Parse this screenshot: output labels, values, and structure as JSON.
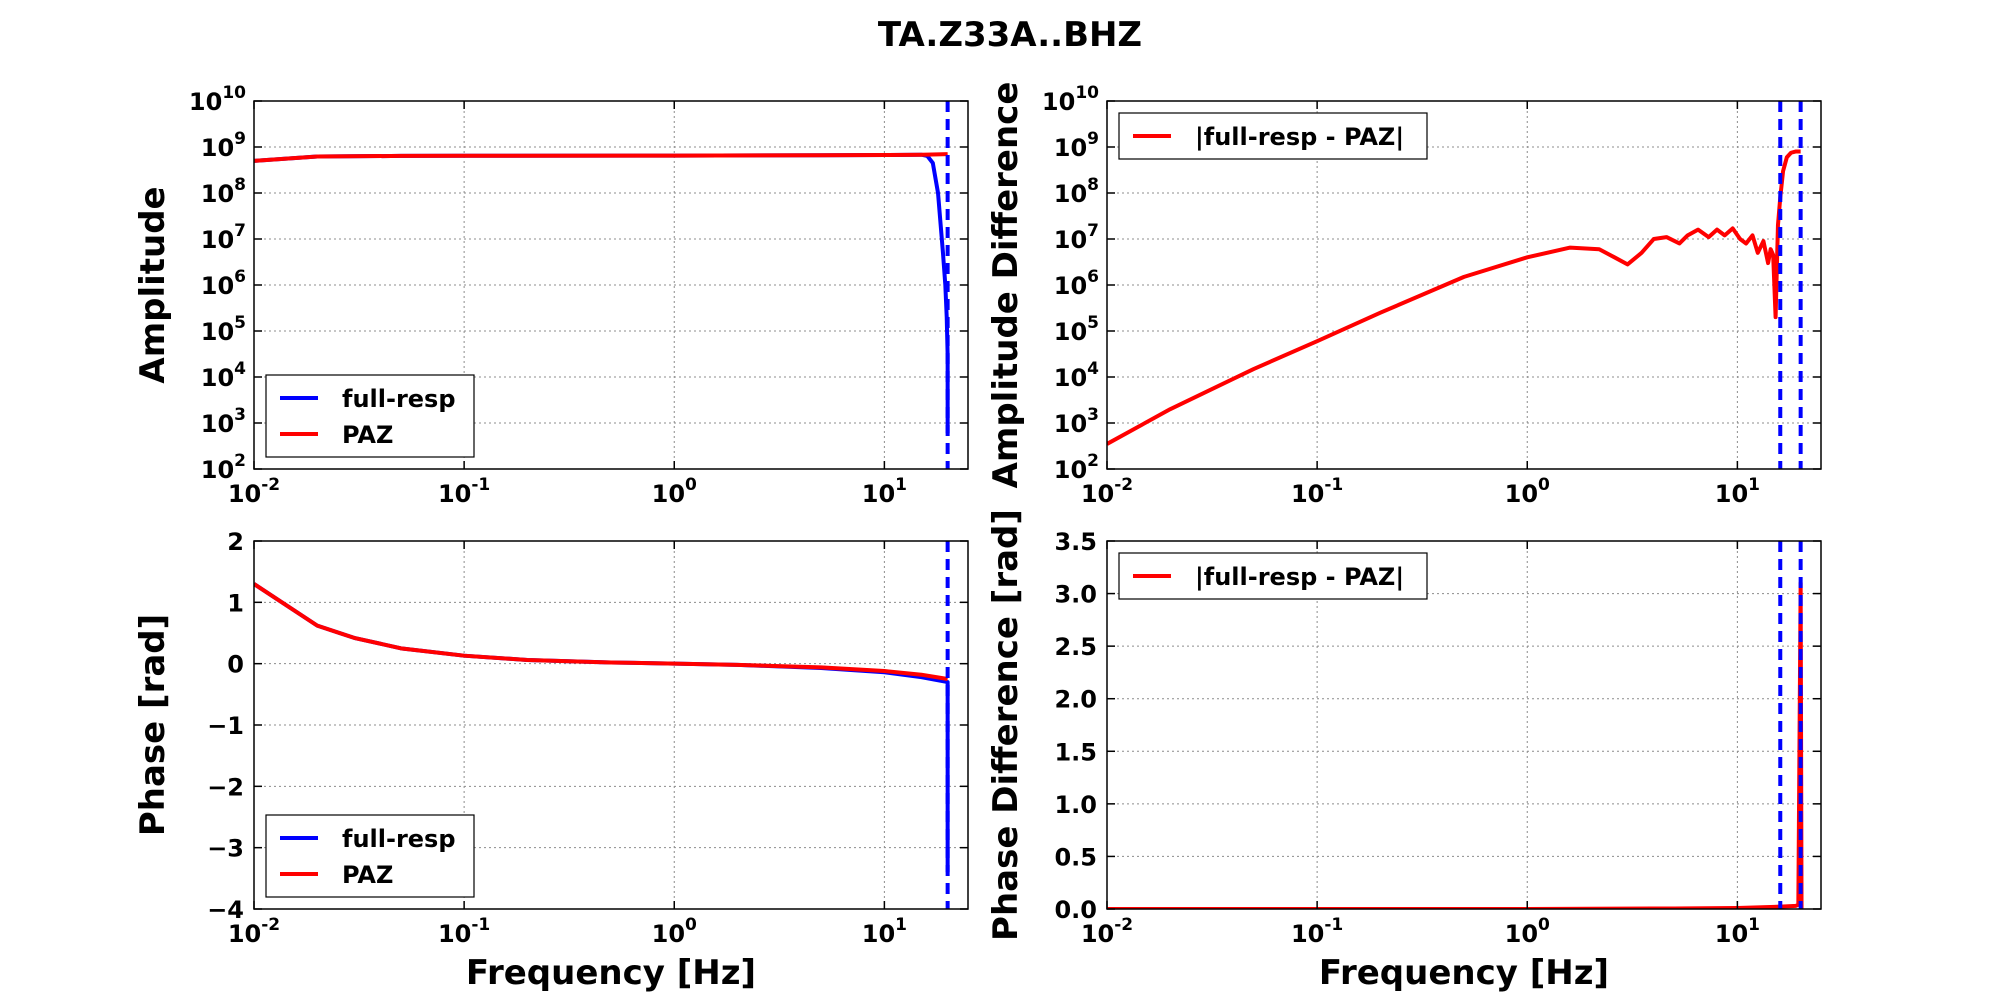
{
  "figure": {
    "title": "TA.Z33A..BHZ"
  },
  "colors": {
    "full_resp": "#0000ff",
    "paz": "#ff0000",
    "background": "#ffffff"
  },
  "chart_data": [
    {
      "id": "amplitude",
      "type": "line",
      "xscale": "log",
      "yscale": "log",
      "xlim": [
        0.01,
        25
      ],
      "ylim": [
        100,
        10000000000
      ],
      "xlabel": "",
      "ylabel": "Amplitude",
      "xticks": [
        0.01,
        0.1,
        1,
        10
      ],
      "xtick_labels": [
        {
          "base": "10",
          "exp": "-2"
        },
        {
          "base": "10",
          "exp": "-1"
        },
        {
          "base": "10",
          "exp": "0"
        },
        {
          "base": "10",
          "exp": "1"
        }
      ],
      "yticks": [
        100,
        1000,
        10000,
        100000,
        1000000,
        10000000,
        100000000,
        1000000000,
        10000000000
      ],
      "ytick_labels": [
        {
          "base": "10",
          "exp": "2"
        },
        {
          "base": "10",
          "exp": "3"
        },
        {
          "base": "10",
          "exp": "4"
        },
        {
          "base": "10",
          "exp": "5"
        },
        {
          "base": "10",
          "exp": "6"
        },
        {
          "base": "10",
          "exp": "7"
        },
        {
          "base": "10",
          "exp": "8"
        },
        {
          "base": "10",
          "exp": "9"
        },
        {
          "base": "10",
          "exp": "10"
        }
      ],
      "grid": true,
      "legend": {
        "position": "lower-left",
        "entries": [
          "full-resp",
          "PAZ"
        ]
      },
      "vlines": [
        20
      ],
      "series": [
        {
          "name": "full-resp",
          "color": "#0000ff",
          "x": [
            0.01,
            0.02,
            0.05,
            0.1,
            1,
            5,
            10,
            15,
            16,
            17,
            18,
            19,
            19.5,
            19.8,
            20,
            20,
            20
          ],
          "y": [
            500000000,
            620000000,
            640000000,
            645000000,
            650000000,
            660000000,
            670000000,
            680000000,
            640000000,
            450000000,
            100000000,
            5000000,
            1000000,
            200000,
            30000,
            3000,
            600
          ]
        },
        {
          "name": "PAZ",
          "color": "#ff0000",
          "x": [
            0.01,
            0.02,
            0.05,
            0.1,
            1,
            5,
            10,
            15,
            20
          ],
          "y": [
            500000000,
            620000000,
            640000000,
            645000000,
            650000000,
            660000000,
            670000000,
            680000000,
            700000000
          ]
        }
      ]
    },
    {
      "id": "amplitude-difference",
      "type": "line",
      "xscale": "log",
      "yscale": "log",
      "xlim": [
        0.01,
        25
      ],
      "ylim": [
        100,
        10000000000
      ],
      "xlabel": "",
      "ylabel": "Amplitude Difference",
      "xticks": [
        0.01,
        0.1,
        1,
        10
      ],
      "xtick_labels": [
        {
          "base": "10",
          "exp": "-2"
        },
        {
          "base": "10",
          "exp": "-1"
        },
        {
          "base": "10",
          "exp": "0"
        },
        {
          "base": "10",
          "exp": "1"
        }
      ],
      "yticks": [
        100,
        1000,
        10000,
        100000,
        1000000,
        10000000,
        100000000,
        1000000000,
        10000000000
      ],
      "ytick_labels": [
        {
          "base": "10",
          "exp": "2"
        },
        {
          "base": "10",
          "exp": "3"
        },
        {
          "base": "10",
          "exp": "4"
        },
        {
          "base": "10",
          "exp": "5"
        },
        {
          "base": "10",
          "exp": "6"
        },
        {
          "base": "10",
          "exp": "7"
        },
        {
          "base": "10",
          "exp": "8"
        },
        {
          "base": "10",
          "exp": "9"
        },
        {
          "base": "10",
          "exp": "10"
        }
      ],
      "grid": true,
      "legend": {
        "position": "upper-left",
        "entries": [
          "|full-resp - PAZ|"
        ]
      },
      "vlines": [
        16,
        20
      ],
      "series": [
        {
          "name": "|full-resp - PAZ|",
          "color": "#ff0000",
          "x": [
            0.01,
            0.02,
            0.05,
            0.1,
            0.2,
            0.5,
            1,
            1.6,
            2.2,
            2.6,
            3,
            3.5,
            4,
            4.6,
            5.3,
            5.8,
            6.5,
            7.3,
            8,
            8.7,
            9.5,
            10.3,
            11,
            11.8,
            12.5,
            13.3,
            14,
            14.4,
            14.8,
            15.2,
            15.6,
            16,
            16.5,
            17.2,
            18,
            19,
            20
          ],
          "y": [
            350,
            2000,
            15000,
            60000,
            250000,
            1500000,
            4000000,
            6500000,
            6000000,
            4000000,
            2800000,
            5000000,
            10000000,
            11000000,
            8000000,
            12000000,
            16000000,
            11000000,
            16000000,
            12000000,
            17000000,
            10000000,
            8000000,
            12000000,
            5000000,
            9000000,
            3000000,
            6000000,
            4500000,
            200000,
            20000000,
            80000000,
            300000000,
            600000000,
            750000000,
            800000000,
            800000000
          ]
        }
      ]
    },
    {
      "id": "phase",
      "type": "line",
      "xscale": "log",
      "yscale": "linear",
      "xlim": [
        0.01,
        25
      ],
      "ylim": [
        -4,
        2
      ],
      "xlabel": "Frequency [Hz]",
      "ylabel": "Phase [rad]",
      "xticks": [
        0.01,
        0.1,
        1,
        10
      ],
      "xtick_labels": [
        {
          "base": "10",
          "exp": "-2"
        },
        {
          "base": "10",
          "exp": "-1"
        },
        {
          "base": "10",
          "exp": "0"
        },
        {
          "base": "10",
          "exp": "1"
        }
      ],
      "yticks": [
        -4,
        -3,
        -2,
        -1,
        0,
        1,
        2
      ],
      "ytick_labels": [
        "−4",
        "−3",
        "−2",
        "−1",
        "0",
        "1",
        "2"
      ],
      "grid": true,
      "legend": {
        "position": "lower-left",
        "entries": [
          "full-resp",
          "PAZ"
        ]
      },
      "vlines": [
        20
      ],
      "series": [
        {
          "name": "full-resp",
          "color": "#0000ff",
          "x": [
            0.01,
            0.02,
            0.03,
            0.05,
            0.1,
            0.2,
            0.5,
            1,
            2,
            5,
            10,
            15,
            20,
            20
          ],
          "y": [
            1.3,
            0.62,
            0.42,
            0.25,
            0.13,
            0.06,
            0.02,
            0.0,
            -0.02,
            -0.07,
            -0.14,
            -0.22,
            -0.3,
            -3.4
          ]
        },
        {
          "name": "PAZ",
          "color": "#ff0000",
          "x": [
            0.01,
            0.02,
            0.03,
            0.05,
            0.1,
            0.2,
            0.5,
            1,
            2,
            5,
            10,
            15,
            20
          ],
          "y": [
            1.3,
            0.62,
            0.42,
            0.25,
            0.13,
            0.06,
            0.02,
            0.0,
            -0.02,
            -0.06,
            -0.12,
            -0.18,
            -0.25
          ]
        }
      ]
    },
    {
      "id": "phase-difference",
      "type": "line",
      "xscale": "log",
      "yscale": "linear",
      "xlim": [
        0.01,
        25
      ],
      "ylim": [
        0,
        3.5
      ],
      "xlabel": "Frequency [Hz]",
      "ylabel": "Phase Difference [rad]",
      "xticks": [
        0.01,
        0.1,
        1,
        10
      ],
      "xtick_labels": [
        {
          "base": "10",
          "exp": "-2"
        },
        {
          "base": "10",
          "exp": "-1"
        },
        {
          "base": "10",
          "exp": "0"
        },
        {
          "base": "10",
          "exp": "1"
        }
      ],
      "yticks": [
        0,
        0.5,
        1,
        1.5,
        2,
        2.5,
        3,
        3.5
      ],
      "ytick_labels": [
        "0.0",
        "0.5",
        "1.0",
        "1.5",
        "2.0",
        "2.5",
        "3.0",
        "3.5"
      ],
      "grid": true,
      "legend": {
        "position": "upper-left",
        "entries": [
          "|full-resp - PAZ|"
        ]
      },
      "vlines": [
        16,
        20
      ],
      "series": [
        {
          "name": "|full-resp - PAZ|",
          "color": "#ff0000",
          "x": [
            0.01,
            0.1,
            1,
            5,
            10,
            15,
            19,
            19.5,
            20,
            20.2
          ],
          "y": [
            0.0,
            0.0,
            0.0,
            0.005,
            0.01,
            0.02,
            0.03,
            0.04,
            3.1,
            0.0
          ]
        }
      ]
    }
  ]
}
